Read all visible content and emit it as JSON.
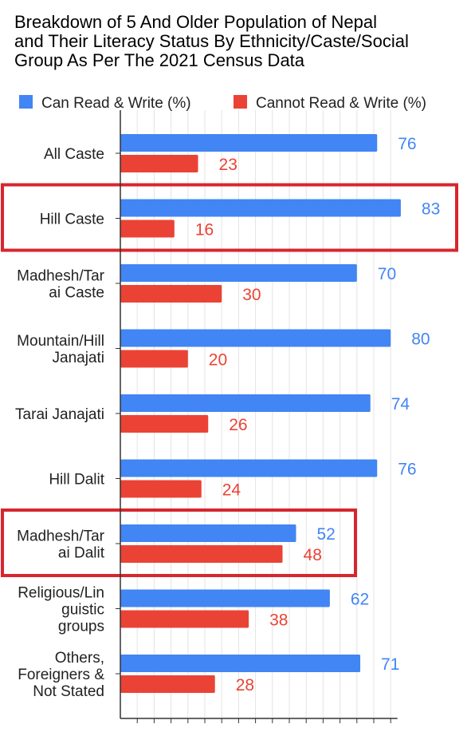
{
  "chart_data": {
    "type": "bar",
    "orientation": "horizontal",
    "title_lines": [
      "Breakdown of 5 And Older Population of Nepal",
      "and Their Literacy Status By Ethnicity/Caste/Social",
      "Group As Per The 2021 Census Data"
    ],
    "categories": [
      [
        "All Caste"
      ],
      [
        "Hill Caste"
      ],
      [
        "Madhesh/Tar",
        "ai Caste"
      ],
      [
        "Mountain/Hill",
        "Janajati"
      ],
      [
        "Tarai Janajati"
      ],
      [
        "Hill Dalit"
      ],
      [
        "Madhesh/Tar",
        "ai Dalit"
      ],
      [
        "Religious/Lin",
        "guistic",
        "groups"
      ],
      [
        "Others,",
        "Foreigners &",
        "Not Stated"
      ]
    ],
    "series": [
      {
        "name": "Can Read & Write (%)",
        "color": "#4285F4",
        "values": [
          76,
          83,
          70,
          80,
          74,
          76,
          52,
          62,
          71
        ]
      },
      {
        "name": "Cannot Read & Write (%)",
        "color": "#EA4335",
        "values": [
          23,
          16,
          30,
          20,
          26,
          24,
          48,
          38,
          28
        ]
      }
    ],
    "xlim": [
      0,
      82
    ],
    "grid": true,
    "legend_position": "top",
    "highlighted_categories": [
      1,
      6
    ],
    "highlight_color": "#D7262E"
  }
}
